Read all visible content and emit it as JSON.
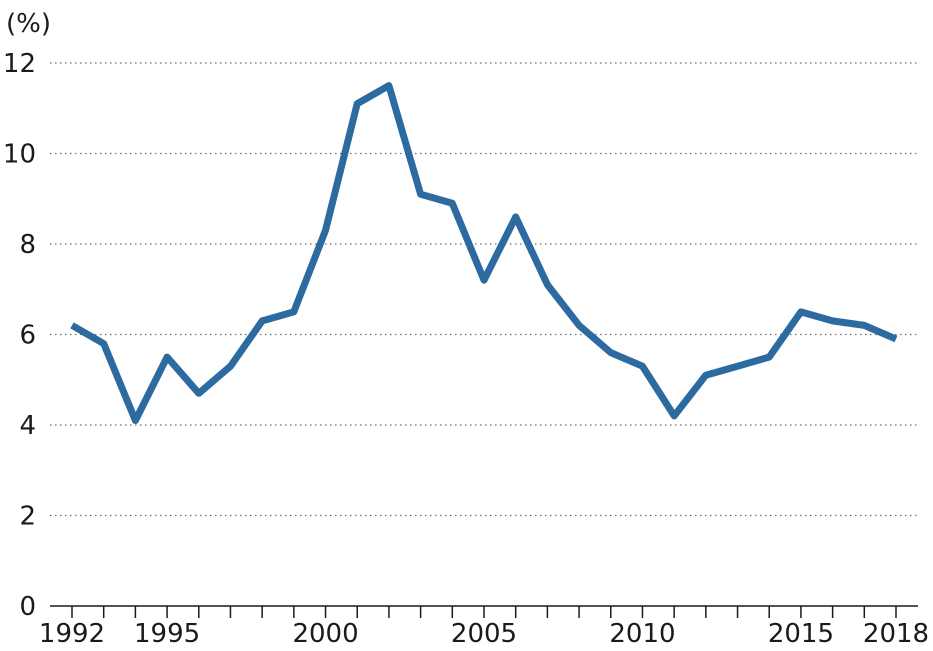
{
  "chart_data": {
    "type": "line",
    "unit_label": "(%)",
    "x": [
      1992,
      1993,
      1994,
      1995,
      1996,
      1997,
      1998,
      1999,
      2000,
      2001,
      2002,
      2003,
      2004,
      2005,
      2006,
      2007,
      2008,
      2009,
      2010,
      2011,
      2012,
      2013,
      2014,
      2015,
      2016,
      2017,
      2018
    ],
    "series": [
      {
        "values": [
          6.2,
          5.8,
          4.1,
          5.5,
          4.7,
          5.3,
          6.3,
          6.5,
          8.3,
          11.1,
          11.5,
          9.1,
          8.9,
          7.2,
          8.6,
          7.1,
          6.2,
          5.6,
          5.3,
          4.2,
          5.1,
          5.3,
          5.5,
          6.5,
          6.3,
          6.2,
          5.9
        ],
        "color": "#2c6aa0"
      }
    ],
    "x_tick_labels": [
      "1992",
      "1995",
      "2000",
      "2005",
      "2010",
      "2015",
      "2018"
    ],
    "y_ticks": [
      0,
      2,
      4,
      6,
      8,
      10,
      12
    ],
    "ylim": [
      0,
      12
    ],
    "xlim": [
      1992,
      2018
    ],
    "grid": "horizontal dotted"
  }
}
